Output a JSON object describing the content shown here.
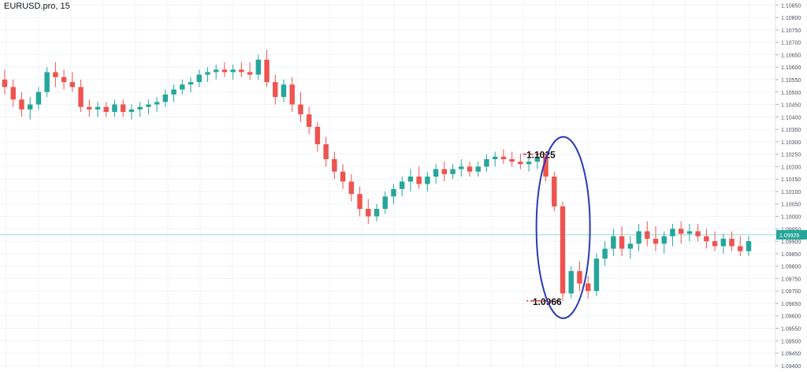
{
  "symbol": "EURUSD.pro, 15",
  "colors": {
    "up": "#26a69a",
    "down": "#ef5350",
    "grid": "#f0f3fa",
    "axis_text": "#50535e",
    "price_line": "#26a69a",
    "annotation_line": "#e53935",
    "ellipse": "#2a3bb7",
    "price_tag_bg": "#26a69a"
  },
  "chart_data": {
    "type": "candlestick",
    "ylim": [
      1.0939,
      1.1087
    ],
    "y_ticks": [
      "1.10850",
      "1.10800",
      "1.10750",
      "1.10700",
      "1.10650",
      "1.10600",
      "1.10550",
      "1.10500",
      "1.10450",
      "1.10400",
      "1.10350",
      "1.10300",
      "1.10250",
      "1.10200",
      "1.10150",
      "1.10100",
      "1.10050",
      "1.10000",
      "1.09950",
      "1.09900",
      "1.09850",
      "1.09800",
      "1.09750",
      "1.09700",
      "1.09650",
      "1.09600",
      "1.09550",
      "1.09500",
      "1.09450",
      "1.09400"
    ],
    "current_price": "1.09926",
    "current_price_value": 1.09926,
    "grid": true,
    "annotations": [
      {
        "label": "1.1025",
        "value": 1.1025
      },
      {
        "label": "1.0966",
        "value": 1.0966
      }
    ],
    "candles": [
      [
        1.1055,
        1.1059,
        1.1049,
        1.1052
      ],
      [
        1.1052,
        1.1055,
        1.1044,
        1.1047
      ],
      [
        1.1047,
        1.105,
        1.104,
        1.1043
      ],
      [
        1.1043,
        1.1048,
        1.1039,
        1.1045
      ],
      [
        1.1045,
        1.1052,
        1.1043,
        1.105
      ],
      [
        1.105,
        1.106,
        1.1048,
        1.1058
      ],
      [
        1.1058,
        1.1062,
        1.1052,
        1.1056
      ],
      [
        1.1056,
        1.1059,
        1.1051,
        1.1054
      ],
      [
        1.1054,
        1.1058,
        1.105,
        1.1052
      ],
      [
        1.1052,
        1.1055,
        1.1042,
        1.1044
      ],
      [
        1.1044,
        1.1047,
        1.104,
        1.1043
      ],
      [
        1.1043,
        1.1046,
        1.104,
        1.1044
      ],
      [
        1.1044,
        1.1046,
        1.104,
        1.1042
      ],
      [
        1.1042,
        1.1047,
        1.104,
        1.1045
      ],
      [
        1.1045,
        1.1047,
        1.104,
        1.1042
      ],
      [
        1.1042,
        1.1045,
        1.1039,
        1.1043
      ],
      [
        1.1043,
        1.1046,
        1.104,
        1.1044
      ],
      [
        1.1044,
        1.1047,
        1.1041,
        1.1045
      ],
      [
        1.1045,
        1.1048,
        1.1042,
        1.1046
      ],
      [
        1.1046,
        1.1051,
        1.1044,
        1.1049
      ],
      [
        1.1049,
        1.1053,
        1.1046,
        1.1051
      ],
      [
        1.1051,
        1.1055,
        1.1049,
        1.1053
      ],
      [
        1.1053,
        1.1056,
        1.105,
        1.1054
      ],
      [
        1.1054,
        1.1059,
        1.1052,
        1.1057
      ],
      [
        1.1057,
        1.106,
        1.1054,
        1.1058
      ],
      [
        1.1058,
        1.1061,
        1.1055,
        1.1059
      ],
      [
        1.1059,
        1.1062,
        1.1056,
        1.1058
      ],
      [
        1.1058,
        1.1061,
        1.1055,
        1.1059
      ],
      [
        1.1059,
        1.1062,
        1.1056,
        1.1058
      ],
      [
        1.1058,
        1.1062,
        1.1055,
        1.1057
      ],
      [
        1.1057,
        1.1065,
        1.1055,
        1.1063
      ],
      [
        1.1063,
        1.1067,
        1.1052,
        1.1054
      ],
      [
        1.1054,
        1.1057,
        1.1045,
        1.1048
      ],
      [
        1.1048,
        1.1055,
        1.1046,
        1.1053
      ],
      [
        1.1053,
        1.1056,
        1.1042,
        1.1045
      ],
      [
        1.1045,
        1.105,
        1.1038,
        1.1041
      ],
      [
        1.1041,
        1.1044,
        1.1033,
        1.1036
      ],
      [
        1.1036,
        1.1038,
        1.1026,
        1.1029
      ],
      [
        1.1029,
        1.1032,
        1.102,
        1.1023
      ],
      [
        1.1023,
        1.1026,
        1.1015,
        1.1018
      ],
      [
        1.1018,
        1.1021,
        1.1011,
        1.1014
      ],
      [
        1.1014,
        1.1017,
        1.1006,
        1.1009
      ],
      [
        1.1009,
        1.1012,
        1.1,
        1.1003
      ],
      [
        1.1003,
        1.1007,
        1.0997,
        1.1
      ],
      [
        1.1,
        1.1005,
        1.0998,
        1.1003
      ],
      [
        1.1003,
        1.101,
        1.1001,
        1.1008
      ],
      [
        1.1008,
        1.1013,
        1.1005,
        1.1011
      ],
      [
        1.1011,
        1.1016,
        1.1008,
        1.1014
      ],
      [
        1.1014,
        1.1019,
        1.101,
        1.1016
      ],
      [
        1.1016,
        1.102,
        1.1011,
        1.1013
      ],
      [
        1.1013,
        1.1018,
        1.101,
        1.1016
      ],
      [
        1.1016,
        1.1021,
        1.1013,
        1.1019
      ],
      [
        1.1019,
        1.1022,
        1.1014,
        1.1017
      ],
      [
        1.1017,
        1.1021,
        1.1015,
        1.1019
      ],
      [
        1.1019,
        1.1023,
        1.1016,
        1.102
      ],
      [
        1.102,
        1.1022,
        1.1016,
        1.1018
      ],
      [
        1.1018,
        1.1022,
        1.1016,
        1.102
      ],
      [
        1.102,
        1.1025,
        1.1018,
        1.1023
      ],
      [
        1.1023,
        1.1026,
        1.102,
        1.1024
      ],
      [
        1.1024,
        1.1027,
        1.1021,
        1.1023
      ],
      [
        1.1023,
        1.1026,
        1.102,
        1.1022
      ],
      [
        1.1022,
        1.1025,
        1.1019,
        1.1021
      ],
      [
        1.1021,
        1.1024,
        1.1018,
        1.1022
      ],
      [
        1.1022,
        1.1025,
        1.1019,
        1.1024
      ],
      [
        1.1024,
        1.1025,
        1.1014,
        1.1016
      ],
      [
        1.1016,
        1.1018,
        1.1002,
        1.1004
      ],
      [
        1.1004,
        1.1006,
        1.0966,
        1.0969
      ],
      [
        1.0969,
        1.098,
        1.0967,
        1.0978
      ],
      [
        1.0978,
        1.0982,
        1.097,
        1.0973
      ],
      [
        1.0973,
        1.0976,
        1.0967,
        1.097
      ],
      [
        1.097,
        1.0985,
        1.0968,
        1.0983
      ],
      [
        1.0983,
        1.099,
        1.098,
        1.0987
      ],
      [
        1.0987,
        1.0995,
        1.0984,
        1.0992
      ],
      [
        1.0992,
        1.0996,
        1.0984,
        1.0987
      ],
      [
        1.0987,
        1.0992,
        1.0983,
        1.0989
      ],
      [
        1.0989,
        1.0997,
        1.0986,
        1.0994
      ],
      [
        1.0994,
        1.0998,
        1.0988,
        1.0991
      ],
      [
        1.0991,
        1.0996,
        1.0986,
        1.0989
      ],
      [
        1.0989,
        1.0994,
        1.0985,
        1.0992
      ],
      [
        1.0992,
        1.0997,
        1.0988,
        1.0995
      ],
      [
        1.0995,
        1.0998,
        1.0989,
        1.0993
      ],
      [
        1.0993,
        1.0997,
        1.099,
        1.0994
      ],
      [
        1.0994,
        1.0997,
        1.099,
        1.0992
      ],
      [
        1.0992,
        1.0995,
        1.0987,
        1.099
      ],
      [
        1.099,
        1.0994,
        1.0986,
        1.0988
      ],
      [
        1.0988,
        1.0993,
        1.0985,
        1.0991
      ],
      [
        1.0991,
        1.0994,
        1.0986,
        1.0988
      ],
      [
        1.0988,
        1.0992,
        1.0984,
        1.0986
      ],
      [
        1.0986,
        1.0992,
        1.0984,
        1.099
      ]
    ]
  }
}
